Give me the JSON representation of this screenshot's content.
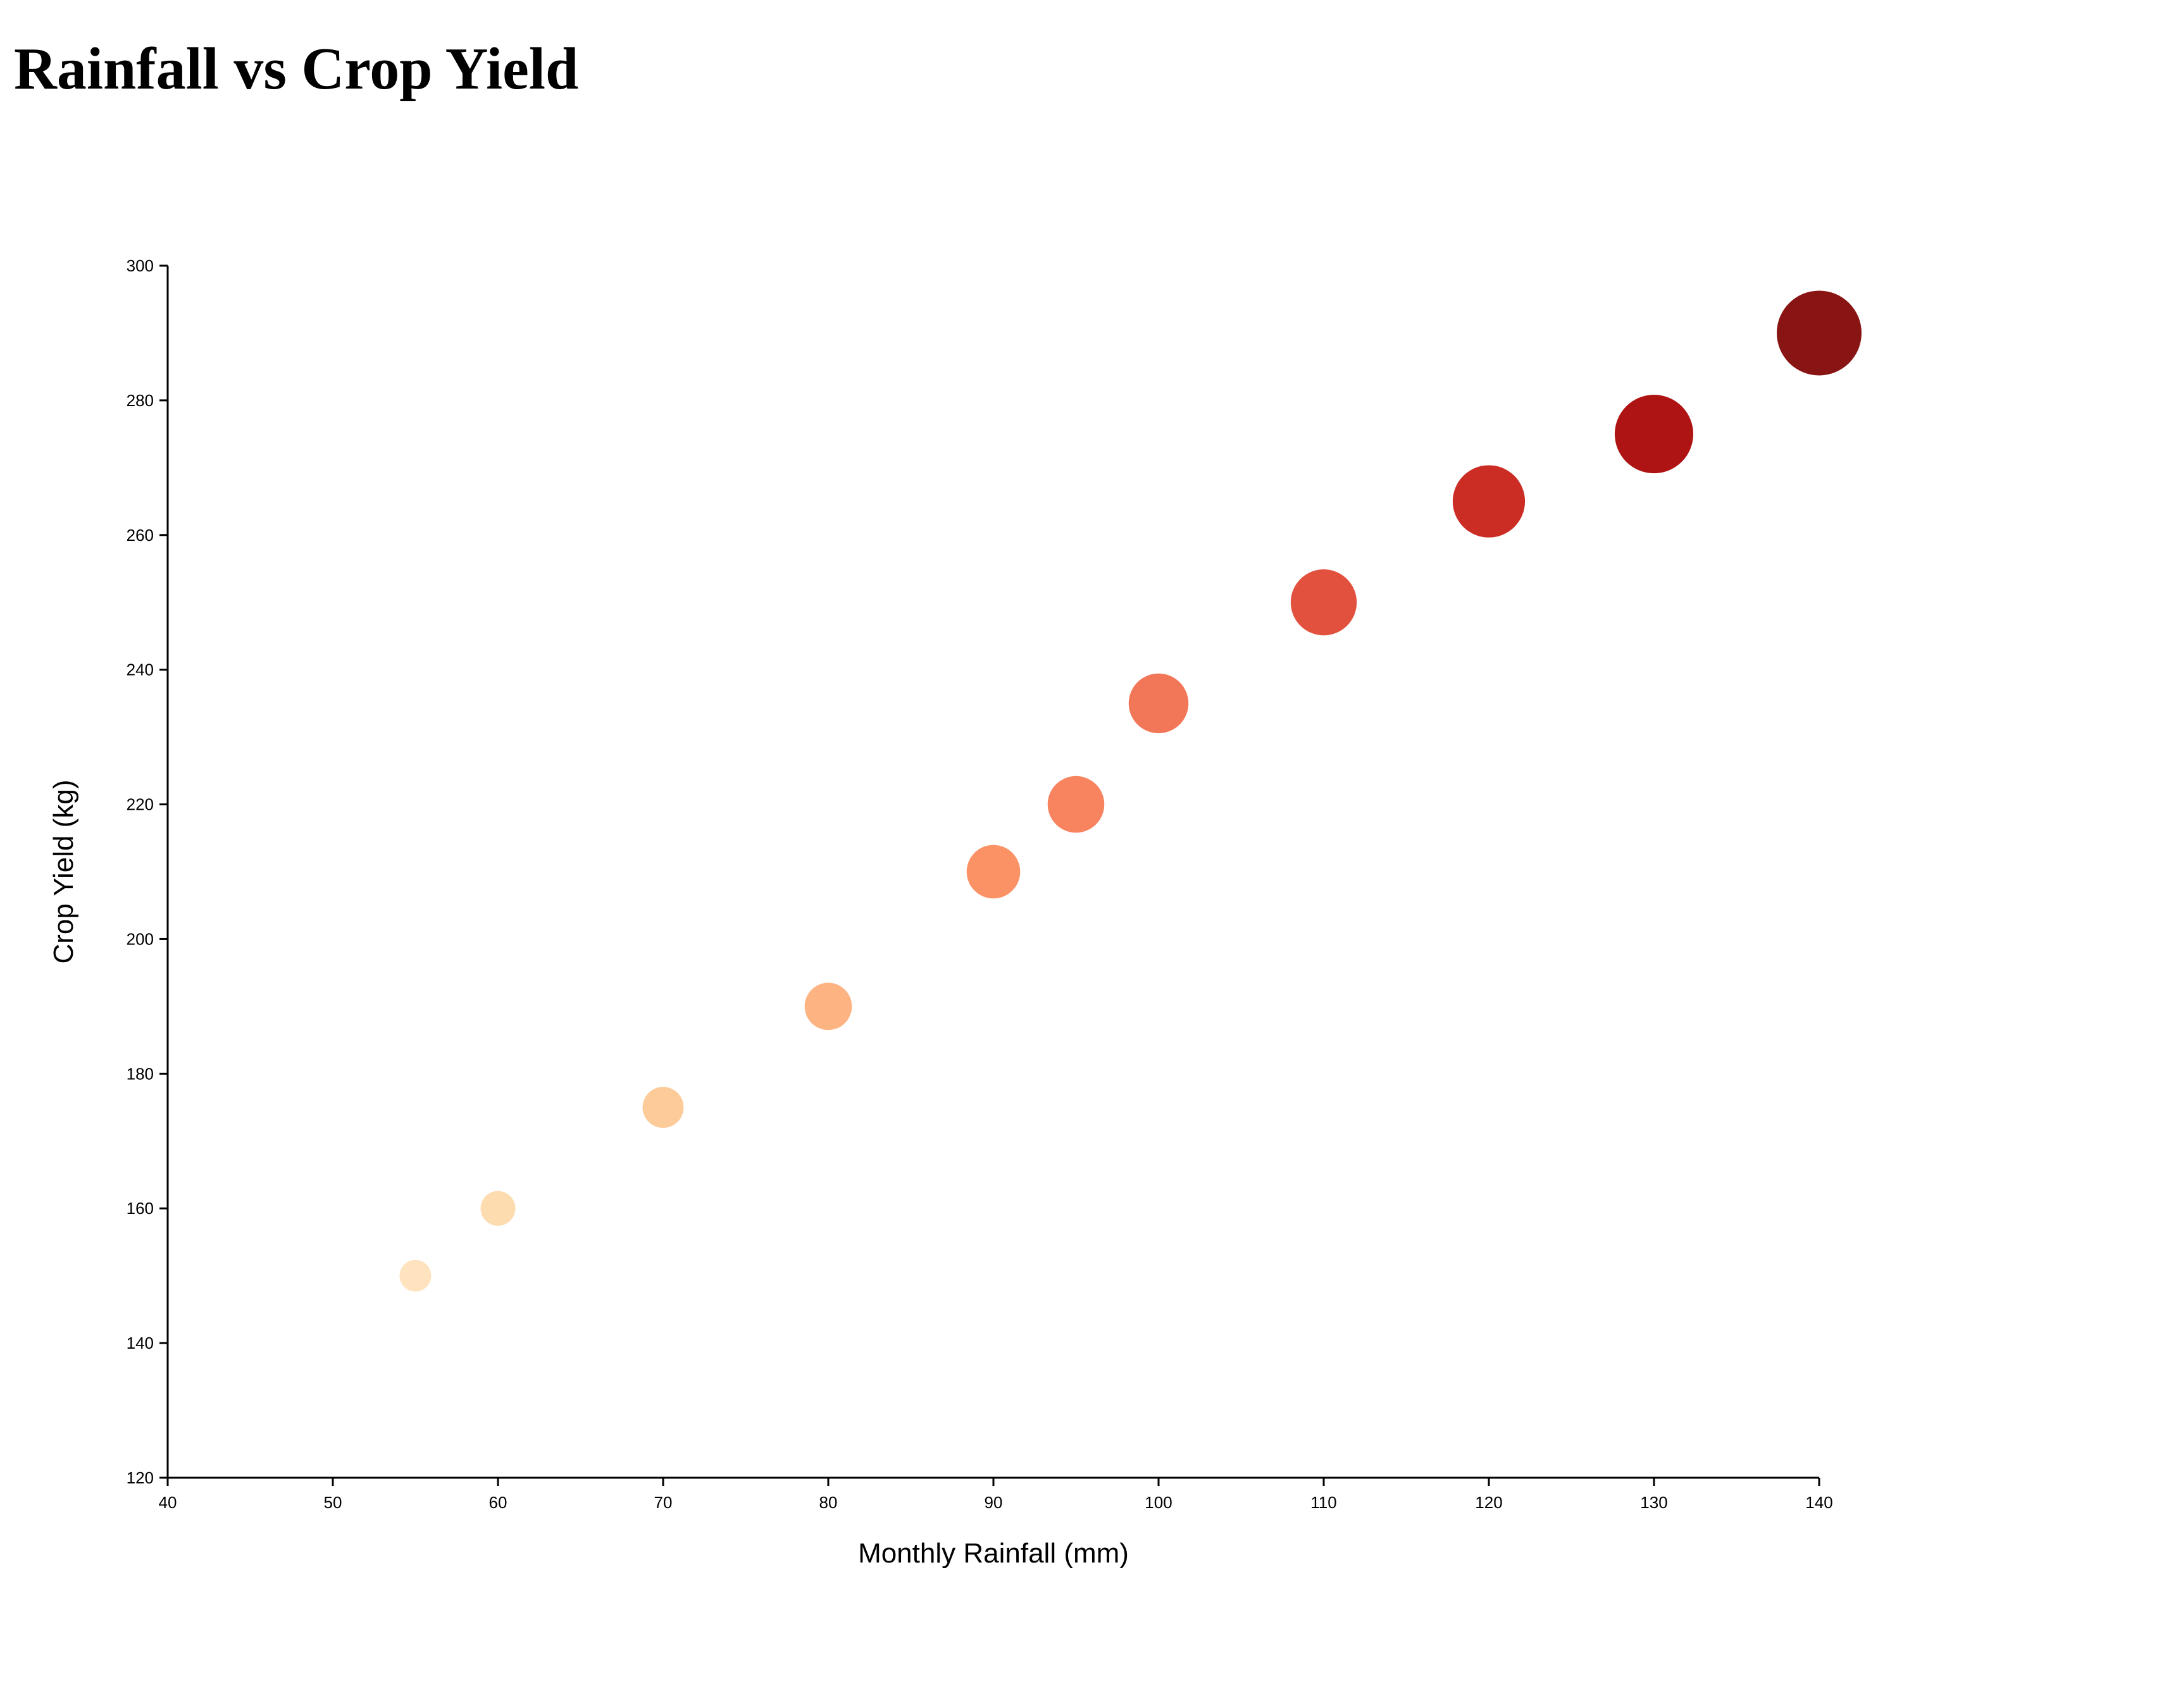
{
  "chart_data": {
    "type": "scatter",
    "title": "Rainfall vs Crop Yield",
    "xlabel": "Monthly Rainfall (mm)",
    "ylabel": "Crop Yield (kg)",
    "xlim": [
      40,
      140
    ],
    "ylim": [
      120,
      300
    ],
    "xticks": [
      40,
      50,
      60,
      70,
      80,
      90,
      100,
      110,
      120,
      130,
      140
    ],
    "yticks": [
      120,
      140,
      160,
      180,
      200,
      220,
      240,
      260,
      280,
      300
    ],
    "grid": false,
    "legend": "none",
    "encoding": "bubble size and color increase with rainfall",
    "color_scale": [
      "#fee6c4",
      "#7f0000"
    ],
    "points": [
      {
        "x": 55,
        "y": 150
      },
      {
        "x": 60,
        "y": 160
      },
      {
        "x": 70,
        "y": 175
      },
      {
        "x": 80,
        "y": 190
      },
      {
        "x": 90,
        "y": 210
      },
      {
        "x": 95,
        "y": 220
      },
      {
        "x": 100,
        "y": 235
      },
      {
        "x": 110,
        "y": 250
      },
      {
        "x": 120,
        "y": 265
      },
      {
        "x": 130,
        "y": 275
      },
      {
        "x": 140,
        "y": 290
      }
    ]
  }
}
